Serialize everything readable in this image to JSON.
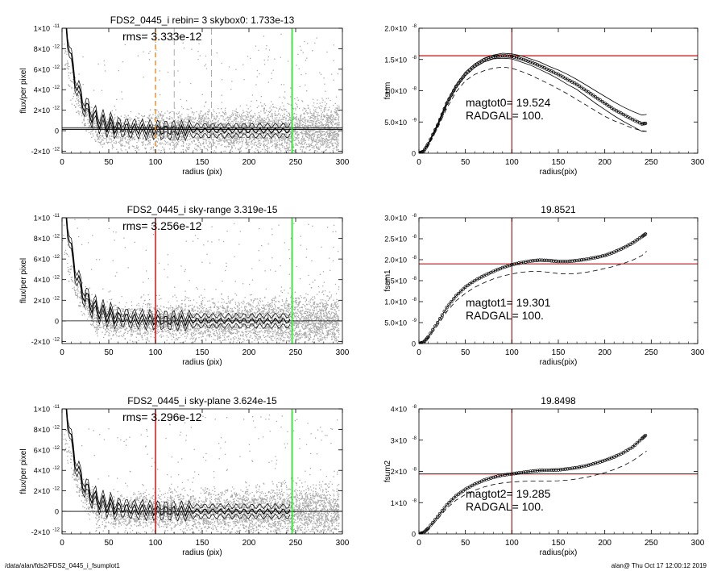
{
  "footer": {
    "left": "/data/alan/fds2/FDS2_0445_i_fsumplot1",
    "right": "alan@  Thu Oct 17 12:00:12 2019"
  },
  "colors": {
    "red": "#e00000",
    "green": "#22dd22",
    "orange": "#f08a1c",
    "scatter": "#a8a8a8",
    "dash": "#999999"
  },
  "chart_data": [
    {
      "type": "scatter",
      "title": "FDS2_0445_i rebin= 3    skybox0:  1.733e-13",
      "annotation": "rms= 3.333e-12",
      "xlabel": "radius (pix)",
      "ylabel": "flux/per pixel",
      "xlim": [
        0,
        300
      ],
      "ylim": [
        -2.2e-12,
        1e-11
      ],
      "xticks": [
        "0",
        "50",
        "100",
        "150",
        "200",
        "250",
        "300"
      ],
      "yticks": [
        {
          "v": 1e-11,
          "m": "1×10",
          "e": "-11"
        },
        {
          "v": 8e-12,
          "m": "8×10",
          "e": "-12"
        },
        {
          "v": 6e-12,
          "m": "6×10",
          "e": "-12"
        },
        {
          "v": 4e-12,
          "m": "4×10",
          "e": "-12"
        },
        {
          "v": 2e-12,
          "m": "2×10",
          "e": "-12"
        },
        {
          "v": 0,
          "m": "0",
          "e": ""
        },
        {
          "v": -2e-12,
          "m": "-2×10",
          "e": "-12"
        }
      ],
      "vlines": [
        {
          "x": 100,
          "color": "orange",
          "style": "dash"
        },
        {
          "x": 120,
          "color": "dash",
          "style": "dash"
        },
        {
          "x": 160,
          "color": "dash",
          "style": "dash"
        },
        {
          "x": 246,
          "color": "green",
          "style": "solid"
        }
      ],
      "hlines": [
        1.5e-13,
        1.2e-13,
        3e-13
      ],
      "seed": 11
    },
    {
      "type": "line",
      "title": "",
      "annotations": [
        "magtot0=  19.524",
        "RADGAL=    100."
      ],
      "xlabel": "radius(pix)",
      "ylabel": "fsum",
      "xlim": [
        0,
        300
      ],
      "ylim": [
        0,
        2e-08
      ],
      "xticks": [
        "0",
        "50",
        "100",
        "150",
        "200",
        "250",
        "300"
      ],
      "yticks": [
        {
          "v": 2e-08,
          "m": "2.0×10",
          "e": "-8"
        },
        {
          "v": 1.5e-08,
          "m": "1.5×10",
          "e": "-8"
        },
        {
          "v": 1e-08,
          "m": "1.0×10",
          "e": "-8"
        },
        {
          "v": 5e-09,
          "m": "5.0×10",
          "e": "-9"
        },
        {
          "v": 0,
          "m": "0",
          "e": ""
        }
      ],
      "vline": 100,
      "hline": 1.56e-08,
      "series": [
        {
          "style": "mark",
          "x": [
            0,
            5,
            10,
            20,
            30,
            40,
            50,
            60,
            70,
            80,
            90,
            100,
            110,
            120,
            130,
            140,
            150,
            160,
            170,
            180,
            190,
            200,
            210,
            220,
            230,
            240,
            245
          ],
          "y": [
            0,
            3e-10,
            1.5e-09,
            4.5e-09,
            8e-09,
            1.07e-08,
            1.27e-08,
            1.4e-08,
            1.49e-08,
            1.54e-08,
            1.56e-08,
            1.55e-08,
            1.51e-08,
            1.46e-08,
            1.4e-08,
            1.33e-08,
            1.26e-08,
            1.18e-08,
            1.1e-08,
            1e-08,
            9e-09,
            8e-09,
            7e-09,
            6.2e-09,
            5.4e-09,
            4.7e-09,
            4.8e-09
          ]
        },
        {
          "style": "solid",
          "x": [
            0,
            5,
            10,
            20,
            30,
            40,
            50,
            60,
            70,
            80,
            90,
            100,
            110,
            120,
            130,
            140,
            150,
            160,
            170,
            180,
            190,
            200,
            210,
            220,
            230,
            240,
            245
          ],
          "y": [
            0,
            3.5e-10,
            1.6e-09,
            4.7e-09,
            8.3e-09,
            1.1e-08,
            1.3e-08,
            1.43e-08,
            1.52e-08,
            1.57e-08,
            1.6e-08,
            1.59e-08,
            1.56e-08,
            1.51e-08,
            1.46e-08,
            1.39e-08,
            1.33e-08,
            1.26e-08,
            1.18e-08,
            1.09e-08,
            1e-08,
            9.1e-09,
            8.2e-09,
            7.4e-09,
            6.7e-09,
            6.1e-09,
            6.2e-09
          ]
        },
        {
          "style": "solid",
          "x": [
            0,
            5,
            10,
            20,
            30,
            40,
            50,
            60,
            70,
            80,
            90,
            100,
            110,
            120,
            130,
            140,
            150,
            160,
            170,
            180,
            190,
            200,
            210,
            220,
            230,
            240,
            245
          ],
          "y": [
            0,
            2.5e-10,
            1.4e-09,
            4.3e-09,
            7.7e-09,
            1.04e-08,
            1.24e-08,
            1.37e-08,
            1.46e-08,
            1.51e-08,
            1.52e-08,
            1.51e-08,
            1.46e-08,
            1.41e-08,
            1.34e-08,
            1.27e-08,
            1.19e-08,
            1.1e-08,
            1.02e-08,
            9.1e-09,
            8e-09,
            7e-09,
            6e-09,
            5.1e-09,
            4.3e-09,
            3.5e-09,
            3.5e-09
          ]
        },
        {
          "style": "dash",
          "x": [
            0,
            10,
            20,
            30,
            40,
            50,
            60,
            70,
            80,
            90,
            100,
            110,
            120,
            130,
            140,
            150,
            160,
            170,
            180,
            190,
            200,
            210,
            220,
            230,
            240,
            245
          ],
          "y": [
            0,
            1.2e-09,
            4e-09,
            7.2e-09,
            9.8e-09,
            1.16e-08,
            1.26e-08,
            1.32e-08,
            1.36e-08,
            1.38e-08,
            1.36e-08,
            1.31e-08,
            1.25e-08,
            1.18e-08,
            1.11e-08,
            1.03e-08,
            9.5e-09,
            8.6e-09,
            7.7e-09,
            6.8e-09,
            5.9e-09,
            5.2e-09,
            4.6e-09,
            4e-09,
            3.6e-09,
            3.5e-09
          ]
        }
      ]
    },
    {
      "type": "scatter",
      "title": "FDS2_0445_i sky-range  3.319e-15",
      "annotation": "rms= 3.256e-12",
      "xlabel": "radius (pix)",
      "ylabel": "flux/per pixel",
      "xlim": [
        0,
        300
      ],
      "ylim": [
        -2.2e-12,
        1e-11
      ],
      "xticks": [
        "0",
        "50",
        "100",
        "150",
        "200",
        "250",
        "300"
      ],
      "yticks": [
        {
          "v": 1e-11,
          "m": "1×10",
          "e": "-11"
        },
        {
          "v": 8e-12,
          "m": "8×10",
          "e": "-12"
        },
        {
          "v": 6e-12,
          "m": "6×10",
          "e": "-12"
        },
        {
          "v": 4e-12,
          "m": "4×10",
          "e": "-12"
        },
        {
          "v": 2e-12,
          "m": "2×10",
          "e": "-12"
        },
        {
          "v": 0,
          "m": "0",
          "e": ""
        },
        {
          "v": -2e-12,
          "m": "-2×10",
          "e": "-12"
        }
      ],
      "vlines": [
        {
          "x": 100,
          "color": "red",
          "style": "solid"
        },
        {
          "x": 246,
          "color": "green",
          "style": "solid"
        }
      ],
      "hlines": [
        0
      ],
      "seed": 23
    },
    {
      "type": "line",
      "title": "19.8521",
      "annotations": [
        "magtot1=  19.301",
        "RADGAL=    100."
      ],
      "xlabel": "radius(pix)",
      "ylabel": "fsum1",
      "xlim": [
        0,
        300
      ],
      "ylim": [
        0,
        3e-08
      ],
      "xticks": [
        "0",
        "50",
        "100",
        "150",
        "200",
        "250",
        "300"
      ],
      "yticks": [
        {
          "v": 3e-08,
          "m": "3.0×10",
          "e": "-8"
        },
        {
          "v": 2.5e-08,
          "m": "2.5×10",
          "e": "-8"
        },
        {
          "v": 2e-08,
          "m": "2.0×10",
          "e": "-8"
        },
        {
          "v": 1.5e-08,
          "m": "1.5×10",
          "e": "-8"
        },
        {
          "v": 1e-08,
          "m": "1.0×10",
          "e": "-8"
        },
        {
          "v": 5e-09,
          "m": "5.0×10",
          "e": "-9"
        },
        {
          "v": 0,
          "m": "0",
          "e": ""
        }
      ],
      "vline": 100,
      "hline": 1.9e-08,
      "series": [
        {
          "style": "mark",
          "x": [
            0,
            5,
            10,
            20,
            30,
            40,
            50,
            60,
            70,
            80,
            90,
            100,
            110,
            120,
            130,
            140,
            150,
            160,
            170,
            180,
            190,
            200,
            210,
            220,
            230,
            240,
            245
          ],
          "y": [
            0,
            3e-10,
            1.6e-09,
            5e-09,
            8.6e-09,
            1.14e-08,
            1.35e-08,
            1.5e-08,
            1.62e-08,
            1.72e-08,
            1.81e-08,
            1.88e-08,
            1.93e-08,
            1.97e-08,
            1.99e-08,
            1.98e-08,
            1.96e-08,
            1.96e-08,
            1.98e-08,
            2.01e-08,
            2.05e-08,
            2.1e-08,
            2.18e-08,
            2.28e-08,
            2.4e-08,
            2.55e-08,
            2.63e-08
          ]
        },
        {
          "style": "dash",
          "x": [
            0,
            10,
            20,
            30,
            40,
            50,
            60,
            70,
            80,
            90,
            100,
            110,
            120,
            130,
            140,
            150,
            160,
            170,
            180,
            190,
            200,
            210,
            220,
            230,
            240,
            245
          ],
          "y": [
            0,
            1.3e-09,
            4.3e-09,
            7.6e-09,
            1.02e-08,
            1.2e-08,
            1.34e-08,
            1.45e-08,
            1.54e-08,
            1.61e-08,
            1.66e-08,
            1.7e-08,
            1.72e-08,
            1.72e-08,
            1.7e-08,
            1.67e-08,
            1.66e-08,
            1.67e-08,
            1.7e-08,
            1.74e-08,
            1.79e-08,
            1.84e-08,
            1.91e-08,
            1.99e-08,
            2.1e-08,
            2.2e-08
          ]
        }
      ]
    },
    {
      "type": "scatter",
      "title": "FDS2_0445_i sky-plane  3.624e-15",
      "annotation": "rms= 3.296e-12",
      "xlabel": "radius (pix)",
      "ylabel": "flux/per pixel",
      "xlim": [
        0,
        300
      ],
      "ylim": [
        -2.2e-12,
        1e-11
      ],
      "xticks": [
        "0",
        "50",
        "100",
        "150",
        "200",
        "250",
        "300"
      ],
      "yticks": [
        {
          "v": 1e-11,
          "m": "1×10",
          "e": "-11"
        },
        {
          "v": 8e-12,
          "m": "8×10",
          "e": "-12"
        },
        {
          "v": 6e-12,
          "m": "6×10",
          "e": "-12"
        },
        {
          "v": 4e-12,
          "m": "4×10",
          "e": "-12"
        },
        {
          "v": 2e-12,
          "m": "2×10",
          "e": "-12"
        },
        {
          "v": 0,
          "m": "0",
          "e": ""
        },
        {
          "v": -2e-12,
          "m": "-2×10",
          "e": "-12"
        }
      ],
      "vlines": [
        {
          "x": 100,
          "color": "red",
          "style": "solid"
        },
        {
          "x": 246,
          "color": "green",
          "style": "solid"
        }
      ],
      "hlines": [
        0
      ],
      "seed": 37
    },
    {
      "type": "line",
      "title": "19.8498",
      "annotations": [
        "magtot2=  19.285",
        "RADGAL=    100."
      ],
      "xlabel": "radius(pix)",
      "ylabel": "fsum2",
      "xlim": [
        0,
        300
      ],
      "ylim": [
        0,
        4e-08
      ],
      "xticks": [
        "0",
        "50",
        "100",
        "150",
        "200",
        "250",
        "300"
      ],
      "yticks": [
        {
          "v": 4e-08,
          "m": "4×10",
          "e": "-8"
        },
        {
          "v": 3e-08,
          "m": "3×10",
          "e": "-8"
        },
        {
          "v": 2e-08,
          "m": "2×10",
          "e": "-8"
        },
        {
          "v": 1e-08,
          "m": "1×10",
          "e": "-8"
        },
        {
          "v": 0,
          "m": "0",
          "e": ""
        }
      ],
      "vline": 100,
      "hline": 1.92e-08,
      "series": [
        {
          "style": "mark",
          "x": [
            0,
            5,
            10,
            20,
            30,
            40,
            50,
            60,
            70,
            80,
            90,
            100,
            110,
            120,
            130,
            140,
            150,
            160,
            170,
            180,
            190,
            200,
            210,
            220,
            230,
            240,
            245
          ],
          "y": [
            0,
            4e-10,
            1.8e-09,
            5.5e-09,
            9.3e-09,
            1.22e-08,
            1.43e-08,
            1.59e-08,
            1.72e-08,
            1.81e-08,
            1.88e-08,
            1.92e-08,
            1.96e-08,
            2e-08,
            2.03e-08,
            2.04e-08,
            2.05e-08,
            2.08e-08,
            2.12e-08,
            2.18e-08,
            2.26e-08,
            2.35e-08,
            2.46e-08,
            2.6e-08,
            2.78e-08,
            3.05e-08,
            3.18e-08
          ]
        },
        {
          "style": "dash",
          "x": [
            0,
            10,
            20,
            30,
            40,
            50,
            60,
            70,
            80,
            90,
            100,
            110,
            120,
            130,
            140,
            150,
            160,
            170,
            180,
            190,
            200,
            210,
            220,
            230,
            240,
            245
          ],
          "y": [
            0,
            1.4e-09,
            4.7e-09,
            8.2e-09,
            1.08e-08,
            1.26e-08,
            1.4e-08,
            1.5e-08,
            1.58e-08,
            1.63e-08,
            1.66e-08,
            1.68e-08,
            1.69e-08,
            1.69e-08,
            1.69e-08,
            1.7e-08,
            1.72e-08,
            1.76e-08,
            1.81e-08,
            1.88e-08,
            1.96e-08,
            2.06e-08,
            2.18e-08,
            2.34e-08,
            2.55e-08,
            2.65e-08
          ]
        }
      ]
    }
  ]
}
